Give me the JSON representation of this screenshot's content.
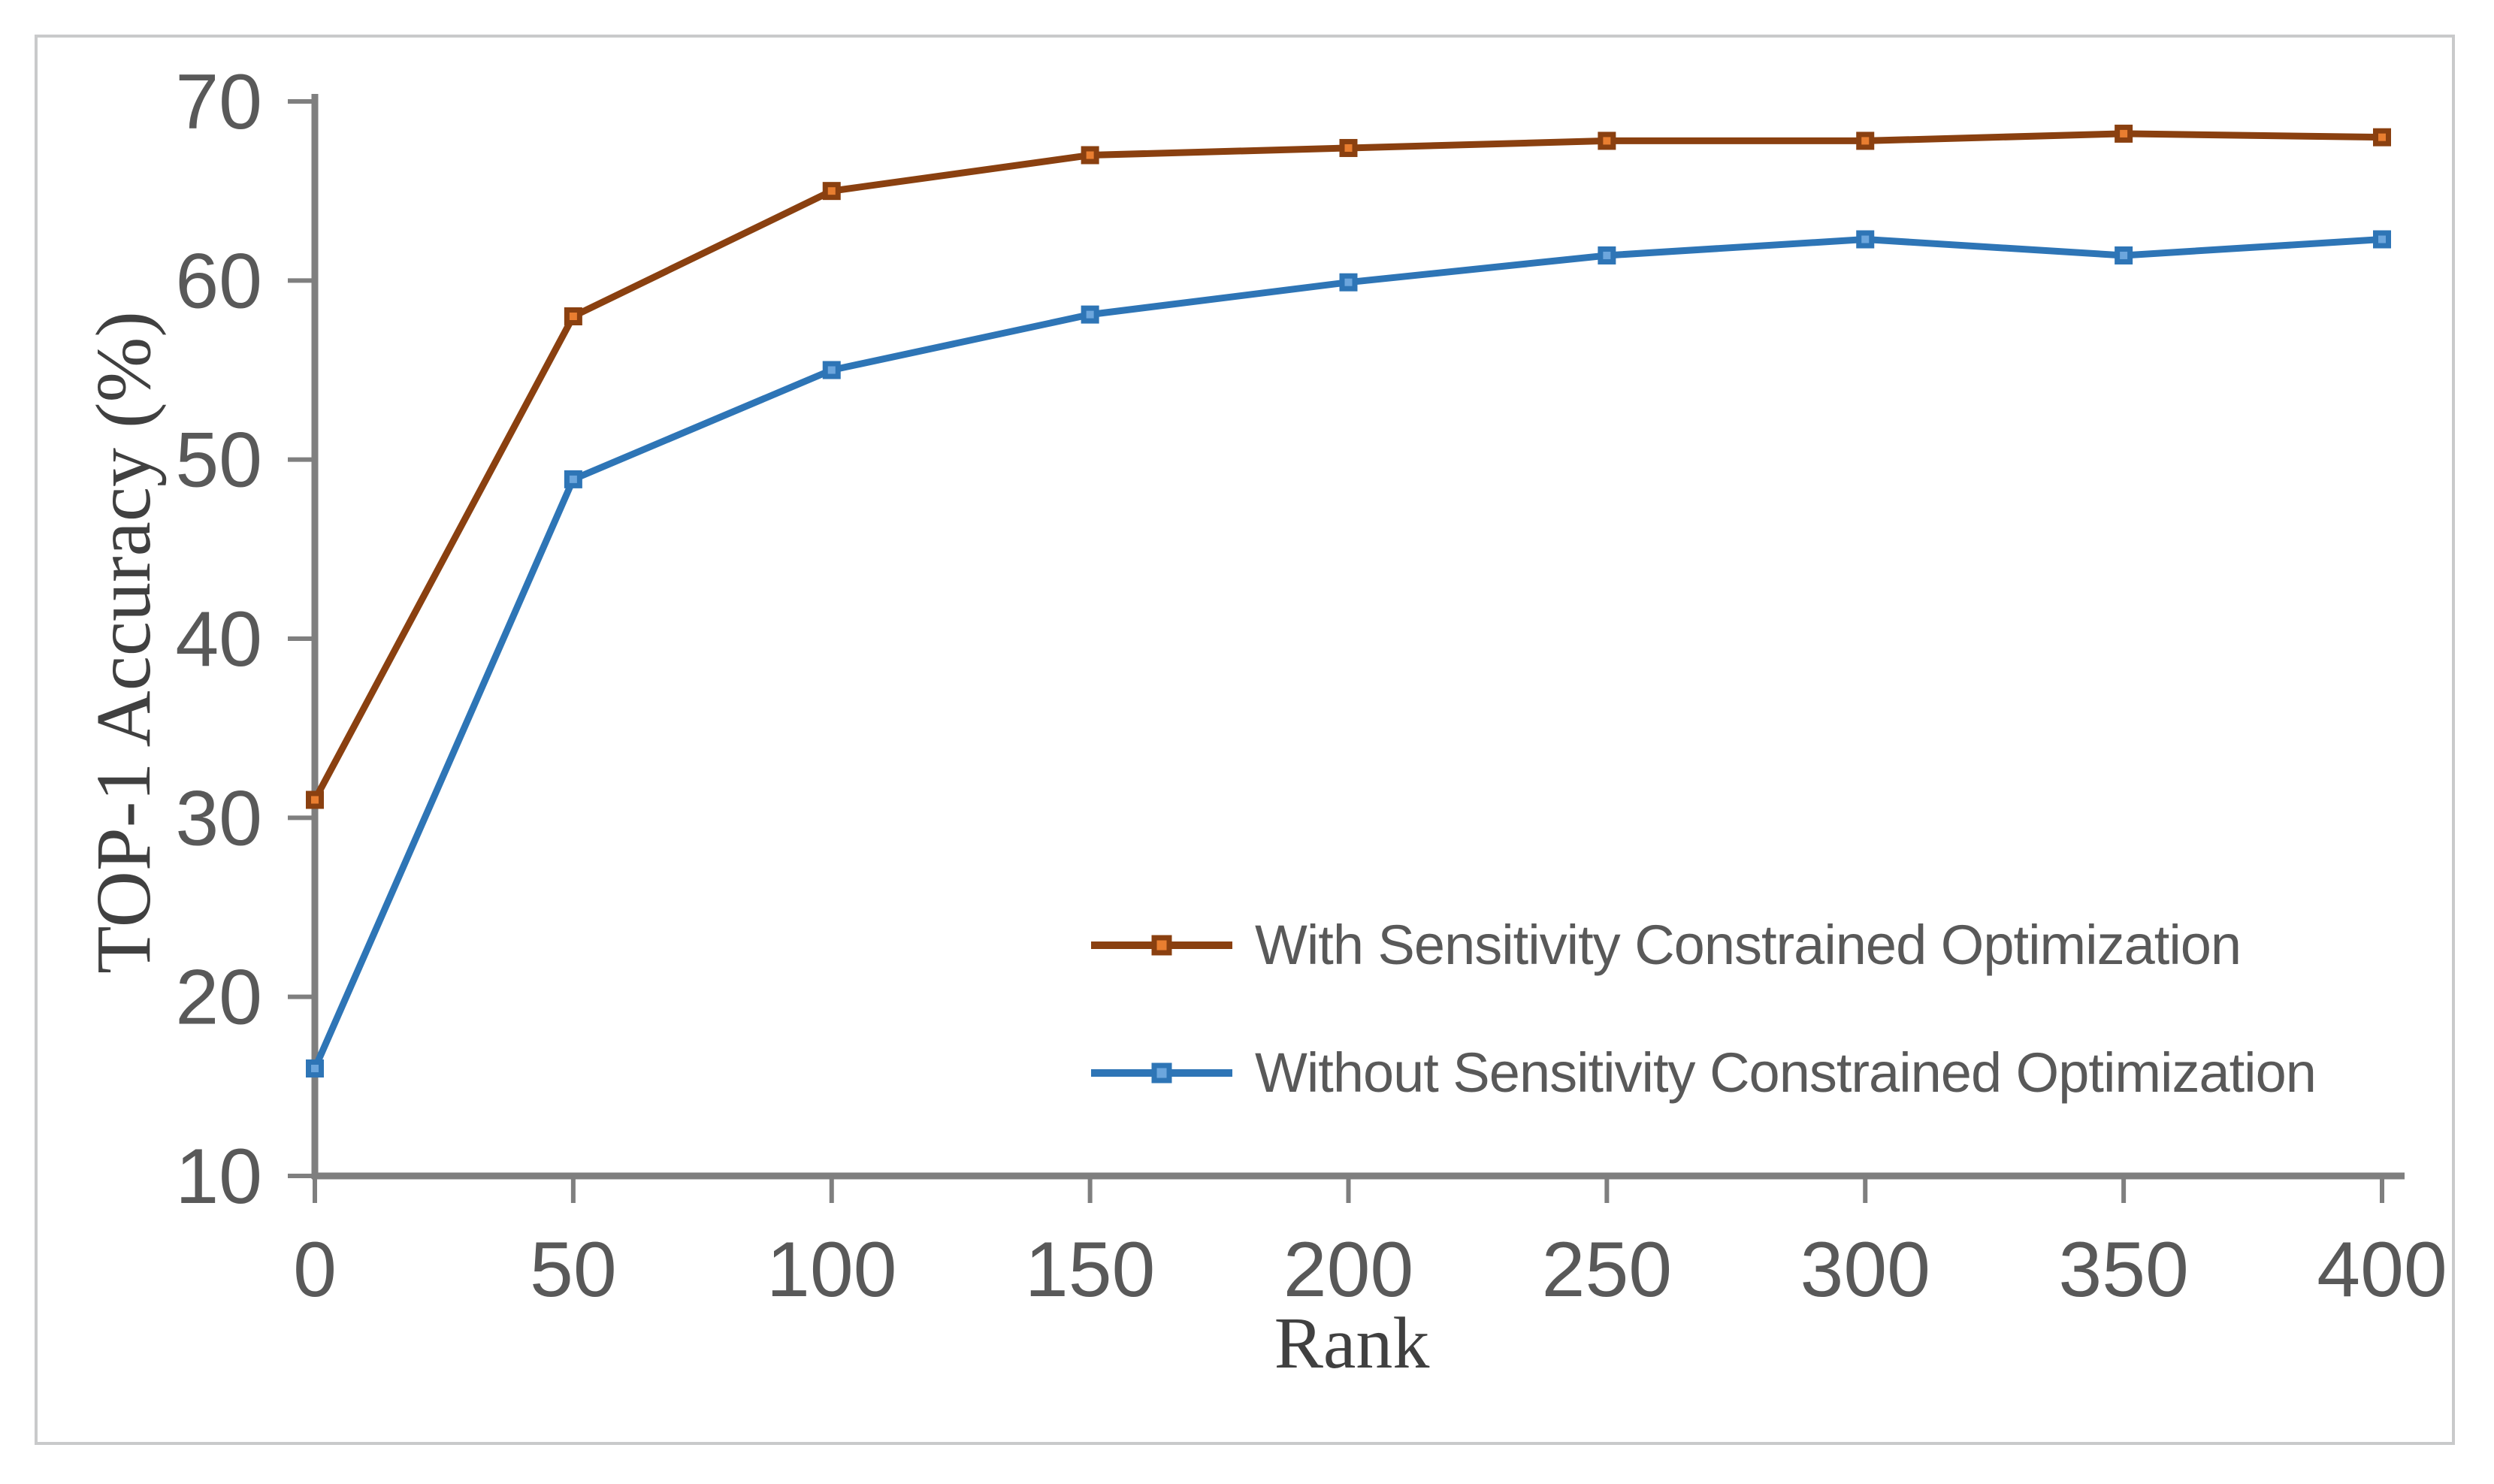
{
  "figure": {
    "background_color": "#ffffff",
    "frame_border_color": "#c9cacb",
    "axis_line_color": "#7f7f7f",
    "tick_label_color": "#595959",
    "axis_title_color": "#404040",
    "legend_text_color": "#595959"
  },
  "chart_data": {
    "type": "line",
    "title": "",
    "xlabel": "Rank",
    "ylabel": "TOP-1 Accuracy (%)",
    "xlim": [
      0,
      400
    ],
    "ylim": [
      10,
      70
    ],
    "x_ticks": [
      0,
      50,
      100,
      150,
      200,
      250,
      300,
      350,
      400
    ],
    "y_ticks": [
      70,
      60,
      50,
      40,
      30,
      20,
      10
    ],
    "grid": false,
    "legend_position": "inside-lower-right",
    "x": [
      0,
      50,
      100,
      150,
      200,
      250,
      300,
      350,
      400
    ],
    "series": [
      {
        "name": "With Sensitivity Constrained Optimization",
        "color": "#8a4010",
        "marker": "square",
        "marker_fill": "#e97e30",
        "values": [
          31,
          58,
          65,
          67,
          67.4,
          67.8,
          67.8,
          68.2,
          68
        ]
      },
      {
        "name": "Without Sensitivity Constrained Optimization",
        "color": "#2e75b6",
        "marker": "square",
        "marker_fill": "#6ca6dd",
        "values": [
          16,
          48.9,
          55,
          58.1,
          59.9,
          61.4,
          62.3,
          61.4,
          62.3
        ]
      }
    ]
  }
}
